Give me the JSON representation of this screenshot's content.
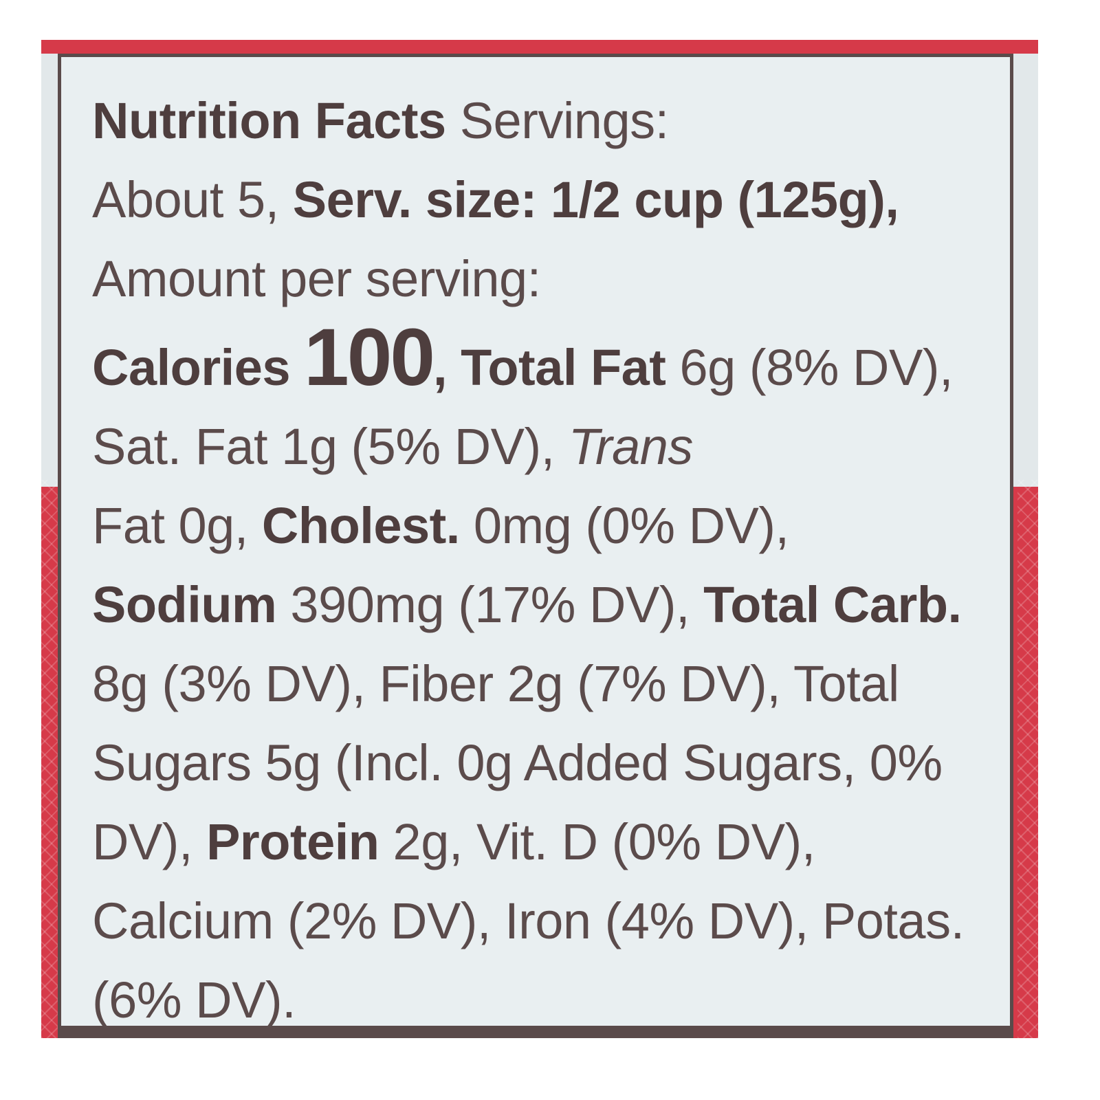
{
  "colors": {
    "package_red": "#d63a49",
    "panel_bg": "#e9eff1",
    "text": "#5b4b4b",
    "border": "#5a4a4a"
  },
  "label": {
    "title": "Nutrition Facts",
    "servings_label": "Servings:",
    "servings_value": "About 5,",
    "serving_size_label": "Serv. size:",
    "serving_size_value": "1/2 cup (125g),",
    "amount_per_serving": "Amount per serving:",
    "calories_label": "Calories",
    "calories_value": "100",
    "after_calories": ",",
    "total_fat_label": "Total Fat",
    "total_fat_value": "6g (8% DV),",
    "sat_fat": "Sat. Fat 1g (5% DV),",
    "trans_word": "Trans",
    "trans_fat_rest": "Fat 0g,",
    "cholesterol_label": "Cholest.",
    "cholesterol_value": "0mg (0% DV),",
    "sodium_label": "Sodium",
    "sodium_value": "390mg (17% DV),",
    "total_carb_label": "Total Carb.",
    "total_carb_value": "8g (3% DV),",
    "fiber": "Fiber 2g (7% DV),",
    "total_sugars": "Total Sugars 5g (Incl. 0g Added Sugars, 0% DV),",
    "protein_label": "Protein",
    "protein_value": "2g,",
    "vit_d": "Vit. D (0% DV),",
    "calcium": "Calcium (2% DV),",
    "iron": "Iron (4% DV),",
    "potassium": "Potas. (6% DV)."
  }
}
